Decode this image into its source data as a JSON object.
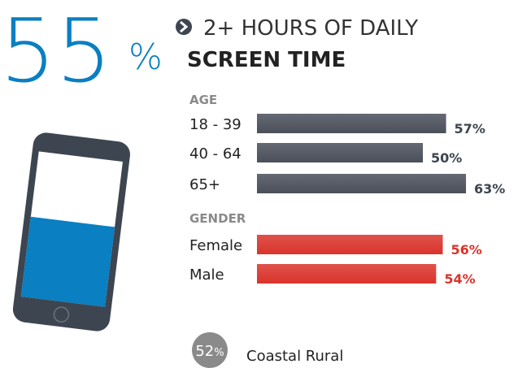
{
  "big_stat": {
    "value": 55,
    "unit": "%",
    "color": "#0a7fc1"
  },
  "title": {
    "line1": "2+ HOURS OF DAILY",
    "line2": "SCREEN TIME"
  },
  "chart_data": [
    {
      "type": "bar",
      "title": "AGE",
      "categories": [
        "18 - 39",
        "40 - 64",
        "65+"
      ],
      "values": [
        57,
        50,
        63
      ],
      "value_labels": [
        "57%",
        "50%",
        "63%"
      ],
      "color": "#4a4f5a"
    },
    {
      "type": "bar",
      "title": "GENDER",
      "categories": [
        "Female",
        "Male"
      ],
      "values": [
        56,
        54
      ],
      "value_labels": [
        "56%",
        "54%"
      ],
      "color": "#d9342b"
    }
  ],
  "footer": {
    "value": 52,
    "unit": "%",
    "label": "Coastal Rural"
  }
}
